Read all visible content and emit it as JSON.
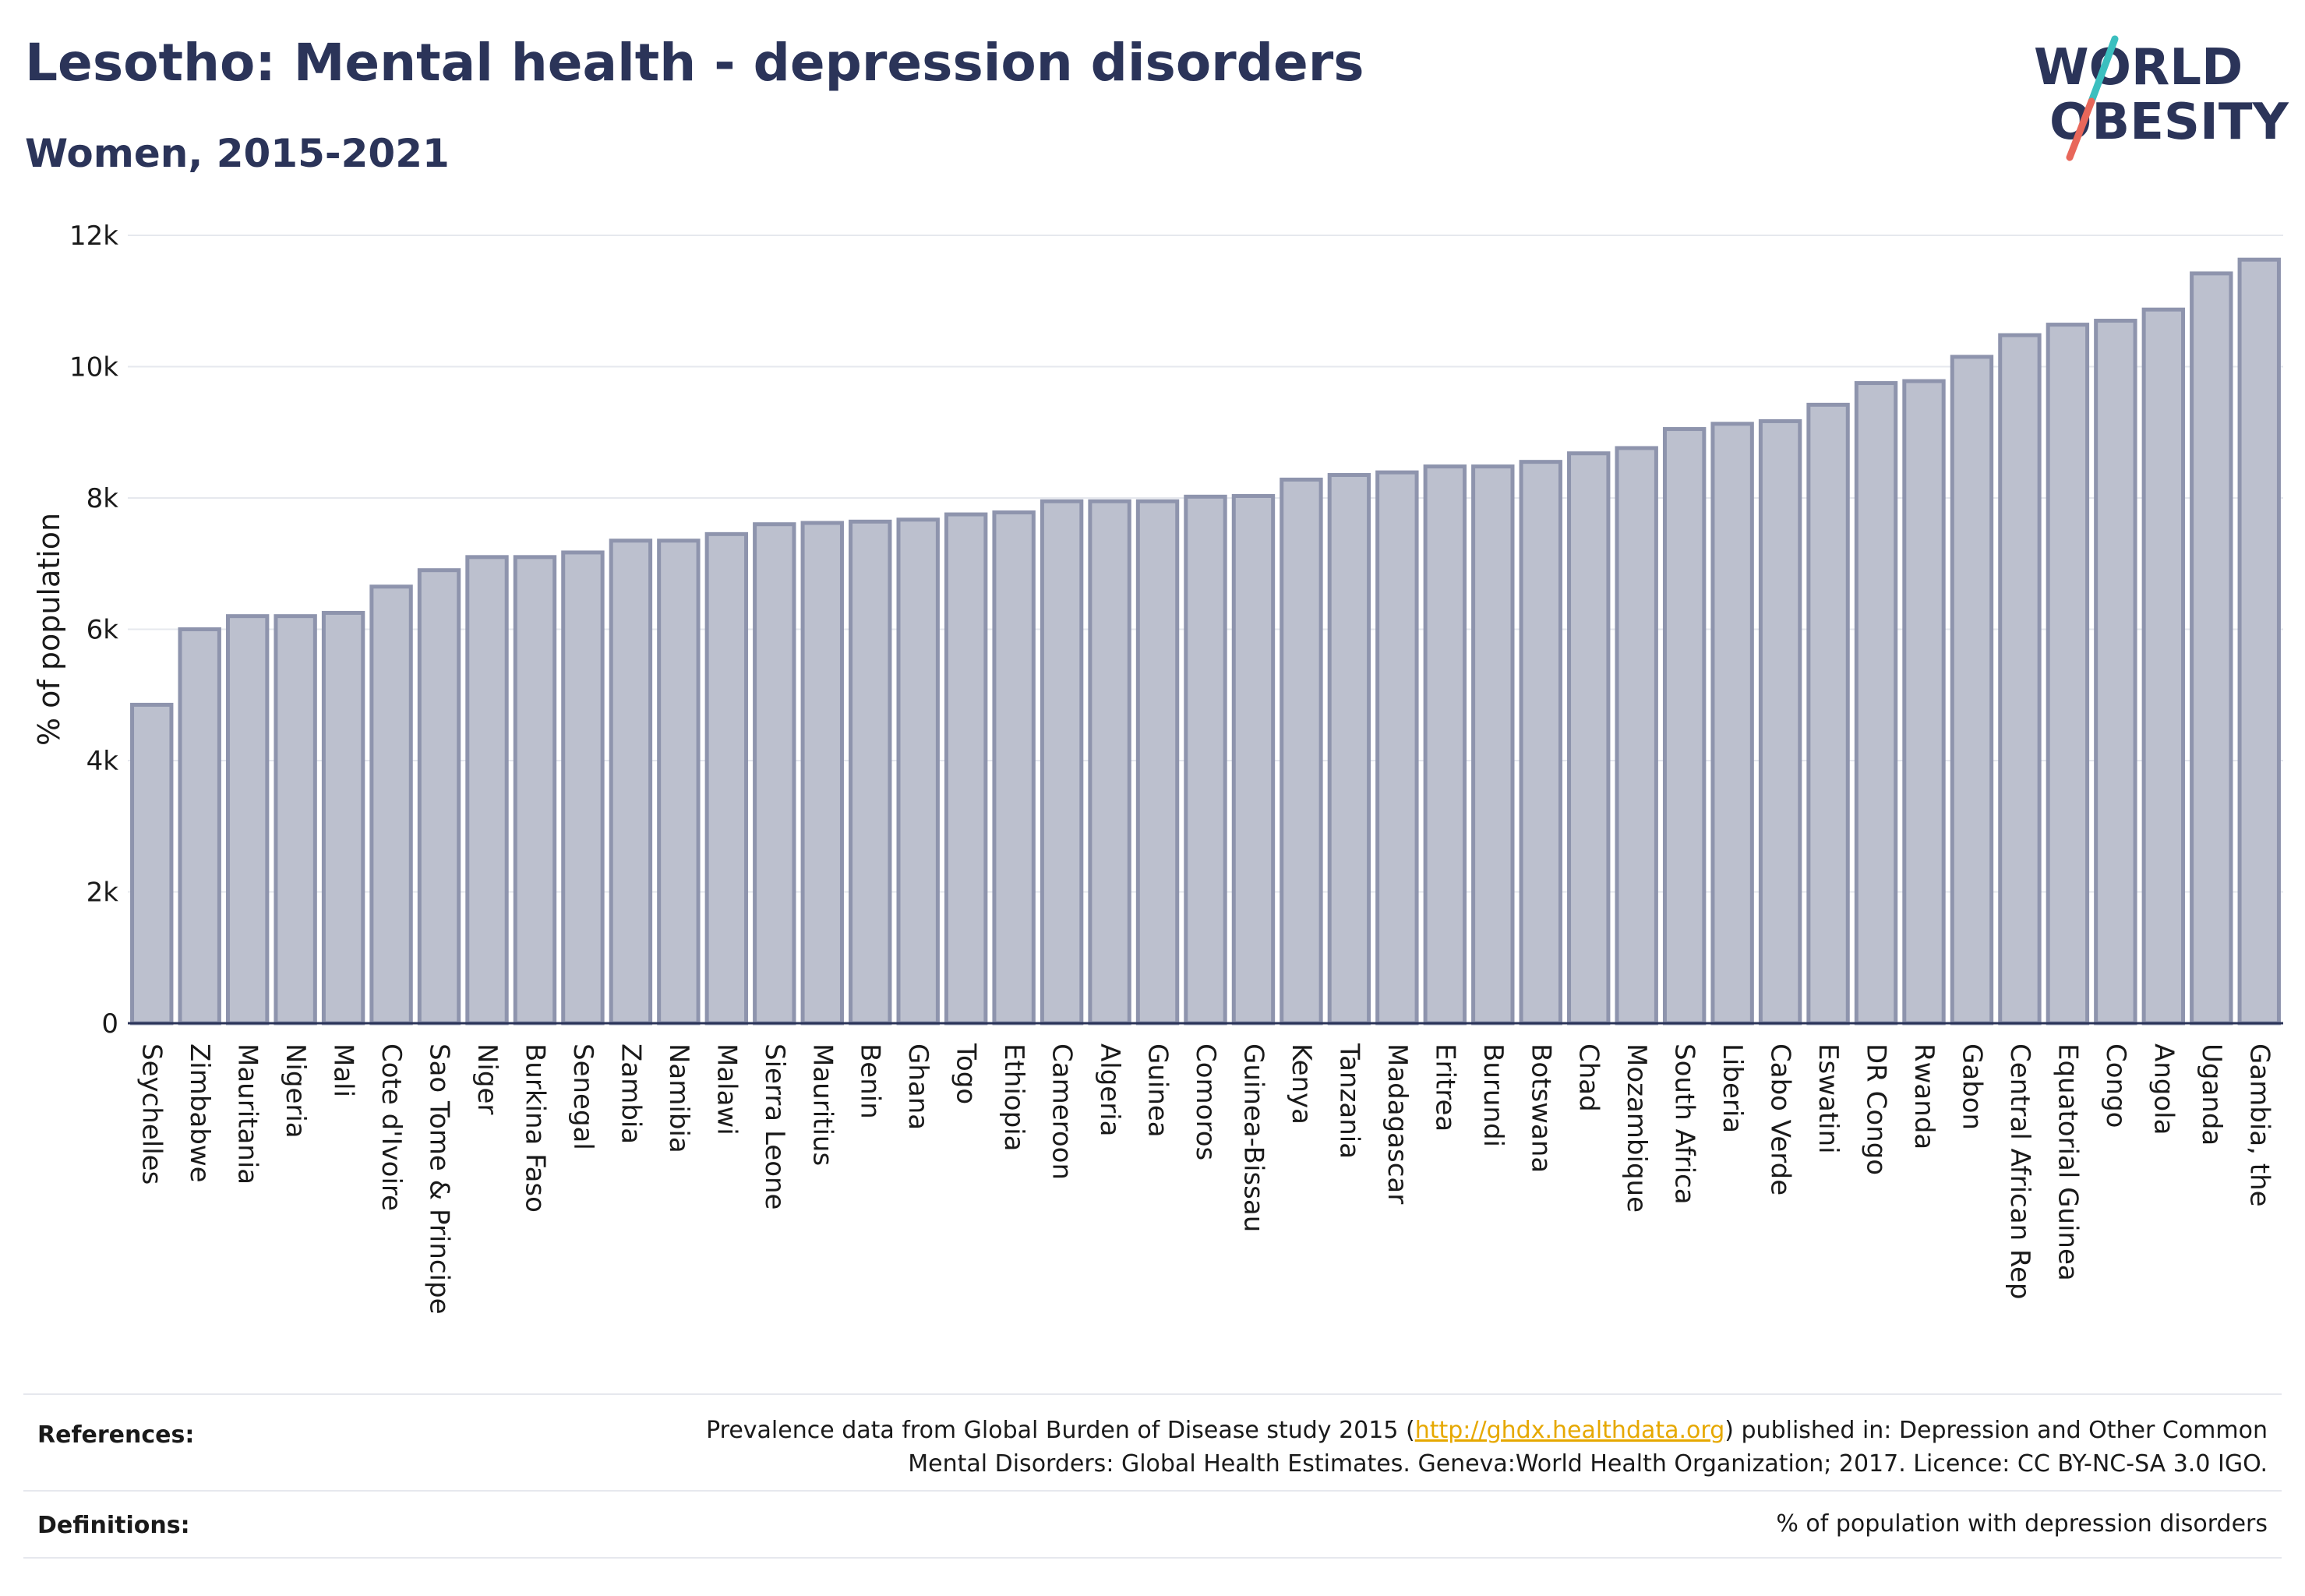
{
  "title": "Lesotho: Mental health - depression disorders",
  "subtitle": "Women, 2015-2021",
  "logo": {
    "line1": "WORLD",
    "line2": "OBESITY"
  },
  "colors": {
    "bar_fill": "#bcc0ce",
    "bar_stroke": "#8e94ad",
    "title": "#2b3459",
    "link": "#e6a800",
    "logo_teal": "#3bbfbf",
    "logo_coral": "#e8675a"
  },
  "chart_data": {
    "type": "bar",
    "ylabel": "% of population",
    "xlabel": "",
    "ylim": [
      0,
      12000
    ],
    "yticks": [
      {
        "value": 0,
        "label": "0"
      },
      {
        "value": 2000,
        "label": "2k"
      },
      {
        "value": 4000,
        "label": "4k"
      },
      {
        "value": 6000,
        "label": "6k"
      },
      {
        "value": 8000,
        "label": "8k"
      },
      {
        "value": 10000,
        "label": "10k"
      },
      {
        "value": 12000,
        "label": "12k"
      }
    ],
    "grid": true,
    "categories": [
      "Seychelles",
      "Zimbabwe",
      "Mauritania",
      "Nigeria",
      "Mali",
      "Cote d'Ivoire",
      "Sao Tome & Principe",
      "Niger",
      "Burkina Faso",
      "Senegal",
      "Zambia",
      "Namibia",
      "Malawi",
      "Sierra Leone",
      "Mauritius",
      "Benin",
      "Ghana",
      "Togo",
      "Ethiopia",
      "Cameroon",
      "Algeria",
      "Guinea",
      "Comoros",
      "Guinea-Bissau",
      "Kenya",
      "Tanzania",
      "Madagascar",
      "Eritrea",
      "Burundi",
      "Botswana",
      "Chad",
      "Mozambique",
      "South Africa",
      "Liberia",
      "Cabo Verde",
      "Eswatini",
      "DR Congo",
      "Rwanda",
      "Gabon",
      "Central African Rep",
      "Equatorial Guinea",
      "Congo",
      "Angola",
      "Uganda",
      "Gambia, the"
    ],
    "values": [
      4850,
      6000,
      6200,
      6200,
      6250,
      6650,
      6900,
      7100,
      7100,
      7170,
      7350,
      7350,
      7450,
      7600,
      7620,
      7640,
      7670,
      7750,
      7780,
      7950,
      7950,
      7950,
      8020,
      8030,
      8280,
      8350,
      8390,
      8480,
      8480,
      8550,
      8680,
      8760,
      9050,
      9130,
      9170,
      9420,
      9750,
      9780,
      10150,
      10480,
      10640,
      10700,
      10870,
      11420,
      11630
    ]
  },
  "footer": {
    "references_label": "References:",
    "references_pre": "Prevalence data from Global Burden of Disease study 2015 (",
    "references_link": "http://ghdx.healthdata.org",
    "references_post": ") published in: Depression and Other Common",
    "references_line2": "Mental Disorders: Global Health Estimates. Geneva:World Health Organization; 2017. Licence: CC BY-NC-SA 3.0 IGO.",
    "definitions_label": "Definitions:",
    "definitions_text": "% of population with depression disorders"
  }
}
